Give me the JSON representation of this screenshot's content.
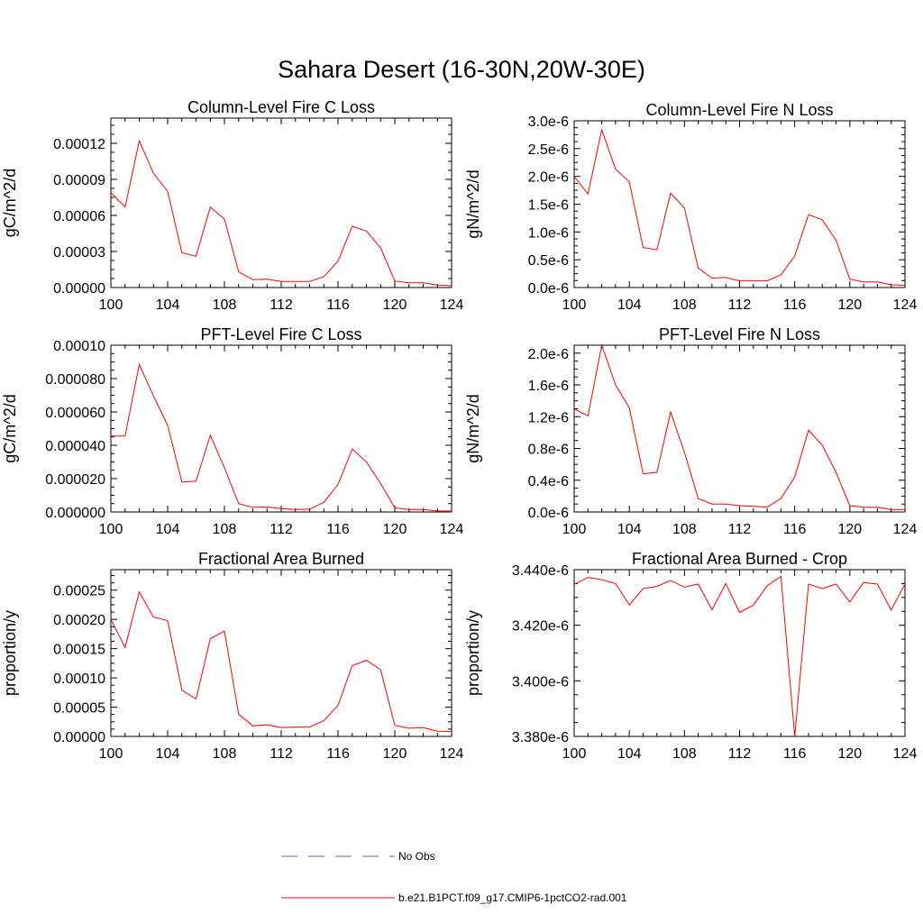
{
  "title": "Sahara Desert (16-30N,20W-30E)",
  "legend": {
    "obs_label": "No Obs",
    "obs_color": "#5b5bd6",
    "model_label": "b.e21.B1PCT.f09_g17.CMIP6-1pctCO2-rad.001",
    "model_color": "#ff0000"
  },
  "chart_data": [
    {
      "type": "line",
      "title": "Column-Level Fire C Loss",
      "ylabel": "gC/m^2/d",
      "xlim": [
        100,
        124
      ],
      "ylim": [
        0,
        0.000141
      ],
      "xticks": [
        100,
        104,
        108,
        112,
        116,
        120,
        124
      ],
      "yticks": [
        0,
        3e-05,
        6e-05,
        9e-05,
        0.00012
      ],
      "yticklabels": [
        "0.00000",
        "0.00003",
        "0.00006",
        "0.00009",
        "0.00012"
      ],
      "x": [
        100,
        101,
        102,
        103,
        104,
        105,
        106,
        107,
        108,
        109,
        110,
        111,
        112,
        113,
        114,
        115,
        116,
        117,
        118,
        119,
        120,
        121,
        122,
        123,
        124
      ],
      "series": [
        {
          "color": "#ff0000",
          "values": [
            7.9e-05,
            6.7e-05,
            0.000122,
            9.5e-05,
            8e-05,
            2.9e-05,
            2.6e-05,
            6.7e-05,
            5.7e-05,
            1.3e-05,
            6.5e-06,
            7e-06,
            5e-06,
            5e-06,
            5e-06,
            9e-06,
            2.2e-05,
            5.1e-05,
            4.7e-05,
            3.3e-05,
            5.5e-06,
            4e-06,
            4e-06,
            2e-06,
            1.5e-06
          ]
        }
      ]
    },
    {
      "type": "line",
      "title": "Column-Level Fire N Loss",
      "ylabel": "gN/m^2/d",
      "xlim": [
        100,
        124
      ],
      "ylim": [
        0,
        3e-06
      ],
      "xticks": [
        100,
        104,
        108,
        112,
        116,
        120,
        124
      ],
      "yticks": [
        0,
        5e-07,
        1e-06,
        1.5e-06,
        2e-06,
        2.5e-06,
        3e-06
      ],
      "yticklabels": [
        "0.0e-6",
        "0.5e-6",
        "1.0e-6",
        "1.5e-6",
        "2.0e-6",
        "2.5e-6",
        "3.0e-6"
      ],
      "x": [
        100,
        101,
        102,
        103,
        104,
        105,
        106,
        107,
        108,
        109,
        110,
        111,
        112,
        113,
        114,
        115,
        116,
        117,
        118,
        119,
        120,
        121,
        122,
        123,
        124
      ],
      "series": [
        {
          "color": "#ff0000",
          "values": [
            2e-06,
            1.68e-06,
            2.84e-06,
            2.13e-06,
            1.9e-06,
            7.2e-07,
            6.8e-07,
            1.7e-06,
            1.43e-06,
            3.5e-07,
            1.7e-07,
            1.8e-07,
            1.2e-07,
            1.2e-07,
            1.2e-07,
            2.3e-07,
            5.7e-07,
            1.31e-06,
            1.22e-06,
            8.5e-07,
            1.5e-07,
            1e-07,
            1e-07,
            5e-08,
            4e-08
          ]
        }
      ]
    },
    {
      "type": "line",
      "title": "PFT-Level Fire C Loss",
      "ylabel": "gC/m^2/d",
      "xlim": [
        100,
        124
      ],
      "ylim": [
        0,
        0.0001
      ],
      "xticks": [
        100,
        104,
        108,
        112,
        116,
        120,
        124
      ],
      "yticks": [
        0,
        2e-05,
        4e-05,
        6e-05,
        8e-05,
        0.0001
      ],
      "yticklabels": [
        "0.000000",
        "0.000020",
        "0.000040",
        "0.000060",
        "0.000080",
        "0.00010"
      ],
      "x": [
        100,
        101,
        102,
        103,
        104,
        105,
        106,
        107,
        108,
        109,
        110,
        111,
        112,
        113,
        114,
        115,
        116,
        117,
        118,
        119,
        120,
        121,
        122,
        123,
        124
      ],
      "series": [
        {
          "color": "#ff0000",
          "values": [
            4.55e-05,
            4.55e-05,
            8.85e-05,
            6.95e-05,
            5.2e-05,
            1.8e-05,
            1.85e-05,
            4.6e-05,
            2.65e-05,
            5e-06,
            2.8e-06,
            3e-06,
            2e-06,
            1.5e-06,
            1.7e-06,
            5.8e-06,
            1.65e-05,
            3.78e-05,
            3e-05,
            1.7e-05,
            2.5e-06,
            1.5e-06,
            1.5e-06,
            6e-07,
            6e-07
          ]
        }
      ]
    },
    {
      "type": "line",
      "title": "PFT-Level Fire N Loss",
      "ylabel": "gN/m^2/d",
      "xlim": [
        100,
        124
      ],
      "ylim": [
        0,
        2.1e-06
      ],
      "xticks": [
        100,
        104,
        108,
        112,
        116,
        120,
        124
      ],
      "yticks": [
        0,
        4e-07,
        8e-07,
        1.2e-06,
        1.6e-06,
        2e-06
      ],
      "yticklabels": [
        "0.0e-6",
        "0.4e-6",
        "0.8e-6",
        "1.2e-6",
        "1.6e-6",
        "2.0e-6"
      ],
      "x": [
        100,
        101,
        102,
        103,
        104,
        105,
        106,
        107,
        108,
        109,
        110,
        111,
        112,
        113,
        114,
        115,
        116,
        117,
        118,
        119,
        120,
        121,
        122,
        123,
        124
      ],
      "series": [
        {
          "color": "#ff0000",
          "values": [
            1.3e-06,
            1.21e-06,
            2.1e-06,
            1.6e-06,
            1.31e-06,
            4.8e-07,
            5e-07,
            1.26e-06,
            7.5e-07,
            1.7e-07,
            1e-07,
            1e-07,
            8e-08,
            7e-08,
            6e-08,
            1.7e-07,
            4.4e-07,
            1.03e-06,
            8.4e-07,
            5e-07,
            8e-08,
            6e-08,
            6e-08,
            3e-08,
            3e-08
          ]
        }
      ]
    },
    {
      "type": "line",
      "title": "Fractional Area Burned",
      "ylabel": "proportion/y",
      "xlim": [
        100,
        124
      ],
      "ylim": [
        0,
        0.000285
      ],
      "xticks": [
        100,
        104,
        108,
        112,
        116,
        120,
        124
      ],
      "yticks": [
        0,
        5e-05,
        0.0001,
        0.00015,
        0.0002,
        0.00025
      ],
      "yticklabels": [
        "0.00000",
        "0.00005",
        "0.00010",
        "0.00015",
        "0.00020",
        "0.00025"
      ],
      "x": [
        100,
        101,
        102,
        103,
        104,
        105,
        106,
        107,
        108,
        109,
        110,
        111,
        112,
        113,
        114,
        115,
        116,
        117,
        118,
        119,
        120,
        121,
        122,
        123,
        124
      ],
      "series": [
        {
          "color": "#ff0000",
          "values": [
            0.0002,
            0.000152,
            0.000247,
            0.000204,
            0.000198,
            7.9e-05,
            6.4e-05,
            0.000167,
            0.00018,
            3.8e-05,
            1.8e-05,
            2e-05,
            1.5e-05,
            1.6e-05,
            1.6e-05,
            2.7e-05,
            5.3e-05,
            0.000121,
            0.00013,
            0.000114,
            1.9e-05,
            1.4e-05,
            1.5e-05,
            9e-06,
            8.5e-06
          ]
        }
      ]
    },
    {
      "type": "line",
      "title": "Fractional Area Burned - Crop",
      "ylabel": "proportion/y",
      "xlim": [
        100,
        124
      ],
      "ylim": [
        3.38e-06,
        3.44e-06
      ],
      "xticks": [
        100,
        104,
        108,
        112,
        116,
        120,
        124
      ],
      "yticks": [
        3.38e-06,
        3.4e-06,
        3.42e-06,
        3.44e-06
      ],
      "yticklabels": [
        "3.380e-6",
        "3.400e-6",
        "3.420e-6",
        "3.440e-6"
      ],
      "x": [
        100,
        101,
        102,
        103,
        104,
        105,
        106,
        107,
        108,
        109,
        110,
        111,
        112,
        113,
        114,
        115,
        116,
        117,
        118,
        119,
        120,
        121,
        122,
        123,
        124
      ],
      "series": [
        {
          "color": "#ff0000",
          "values": [
            3.4347e-06,
            3.4372e-06,
            3.4364e-06,
            3.435e-06,
            3.4273e-06,
            3.4332e-06,
            3.434e-06,
            3.4361e-06,
            3.4337e-06,
            3.4348e-06,
            3.4256e-06,
            3.435e-06,
            3.4246e-06,
            3.4273e-06,
            3.4342e-06,
            3.4376e-06,
            3.38e-06,
            3.4348e-06,
            3.4332e-06,
            3.4348e-06,
            3.4284e-06,
            3.4354e-06,
            3.4348e-06,
            3.4255e-06,
            3.4348e-06
          ]
        }
      ]
    }
  ]
}
